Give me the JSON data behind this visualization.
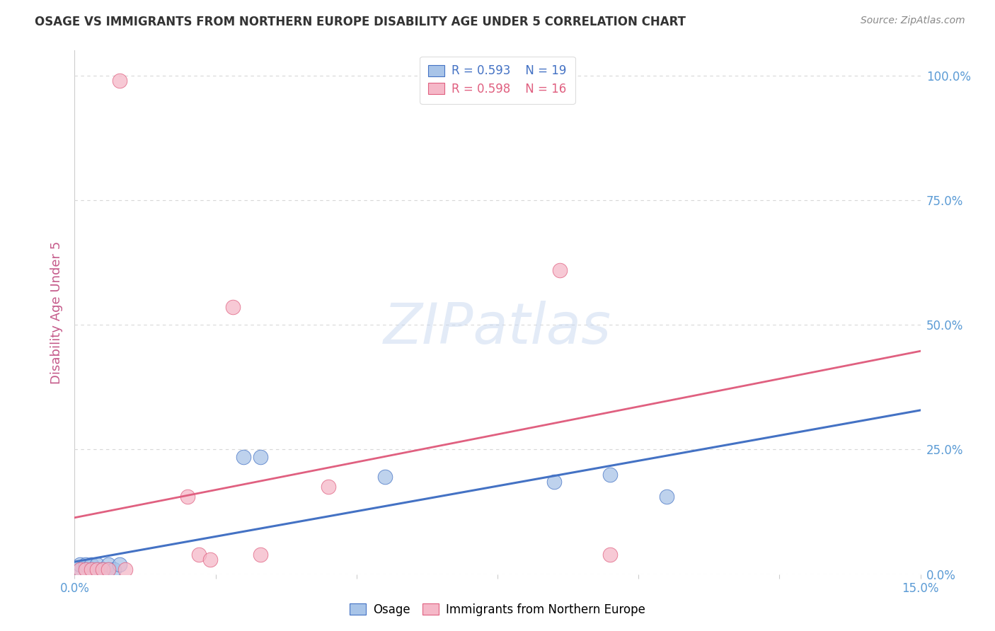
{
  "title": "OSAGE VS IMMIGRANTS FROM NORTHERN EUROPE DISABILITY AGE UNDER 5 CORRELATION CHART",
  "source": "Source: ZipAtlas.com",
  "ylabel": "Disability Age Under 5",
  "legend_blue_r": "0.593",
  "legend_blue_n": "19",
  "legend_pink_r": "0.598",
  "legend_pink_n": "16",
  "legend_blue_label": "Osage",
  "legend_pink_label": "Immigrants from Northern Europe",
  "osage_x": [
    0.001,
    0.001,
    0.002,
    0.002,
    0.003,
    0.003,
    0.004,
    0.004,
    0.005,
    0.006,
    0.006,
    0.007,
    0.008,
    0.03,
    0.033,
    0.055,
    0.085,
    0.095,
    0.105
  ],
  "osage_y": [
    0.01,
    0.02,
    0.01,
    0.02,
    0.01,
    0.02,
    0.01,
    0.02,
    0.01,
    0.01,
    0.02,
    0.01,
    0.02,
    0.235,
    0.235,
    0.195,
    0.185,
    0.2,
    0.155
  ],
  "immigrants_x": [
    0.001,
    0.002,
    0.003,
    0.004,
    0.005,
    0.006,
    0.008,
    0.009,
    0.02,
    0.022,
    0.028,
    0.033,
    0.045,
    0.086,
    0.095,
    0.024
  ],
  "immigrants_y": [
    0.01,
    0.01,
    0.01,
    0.01,
    0.01,
    0.01,
    0.99,
    0.01,
    0.155,
    0.04,
    0.535,
    0.04,
    0.175,
    0.61,
    0.04,
    0.03
  ],
  "osage_color": "#a8c4e8",
  "immigrants_color": "#f5b8c8",
  "osage_line_color": "#4472c4",
  "immigrants_line_color": "#e06080",
  "xlim": [
    0.0,
    0.15
  ],
  "ylim": [
    0.0,
    1.05
  ],
  "x_ticks": [
    0.0,
    0.025,
    0.05,
    0.075,
    0.1,
    0.125,
    0.15
  ],
  "y_ticks": [
    0.0,
    0.25,
    0.5,
    0.75,
    1.0
  ],
  "y_tick_labels": [
    "0.0%",
    "25.0%",
    "50.0%",
    "75.0%",
    "100.0%"
  ],
  "grid_color": "#d8d8d8",
  "tick_color": "#5b9bd5",
  "background_color": "#ffffff",
  "watermark_text": "ZIPatlas",
  "watermark_color": "#c8d8f0"
}
